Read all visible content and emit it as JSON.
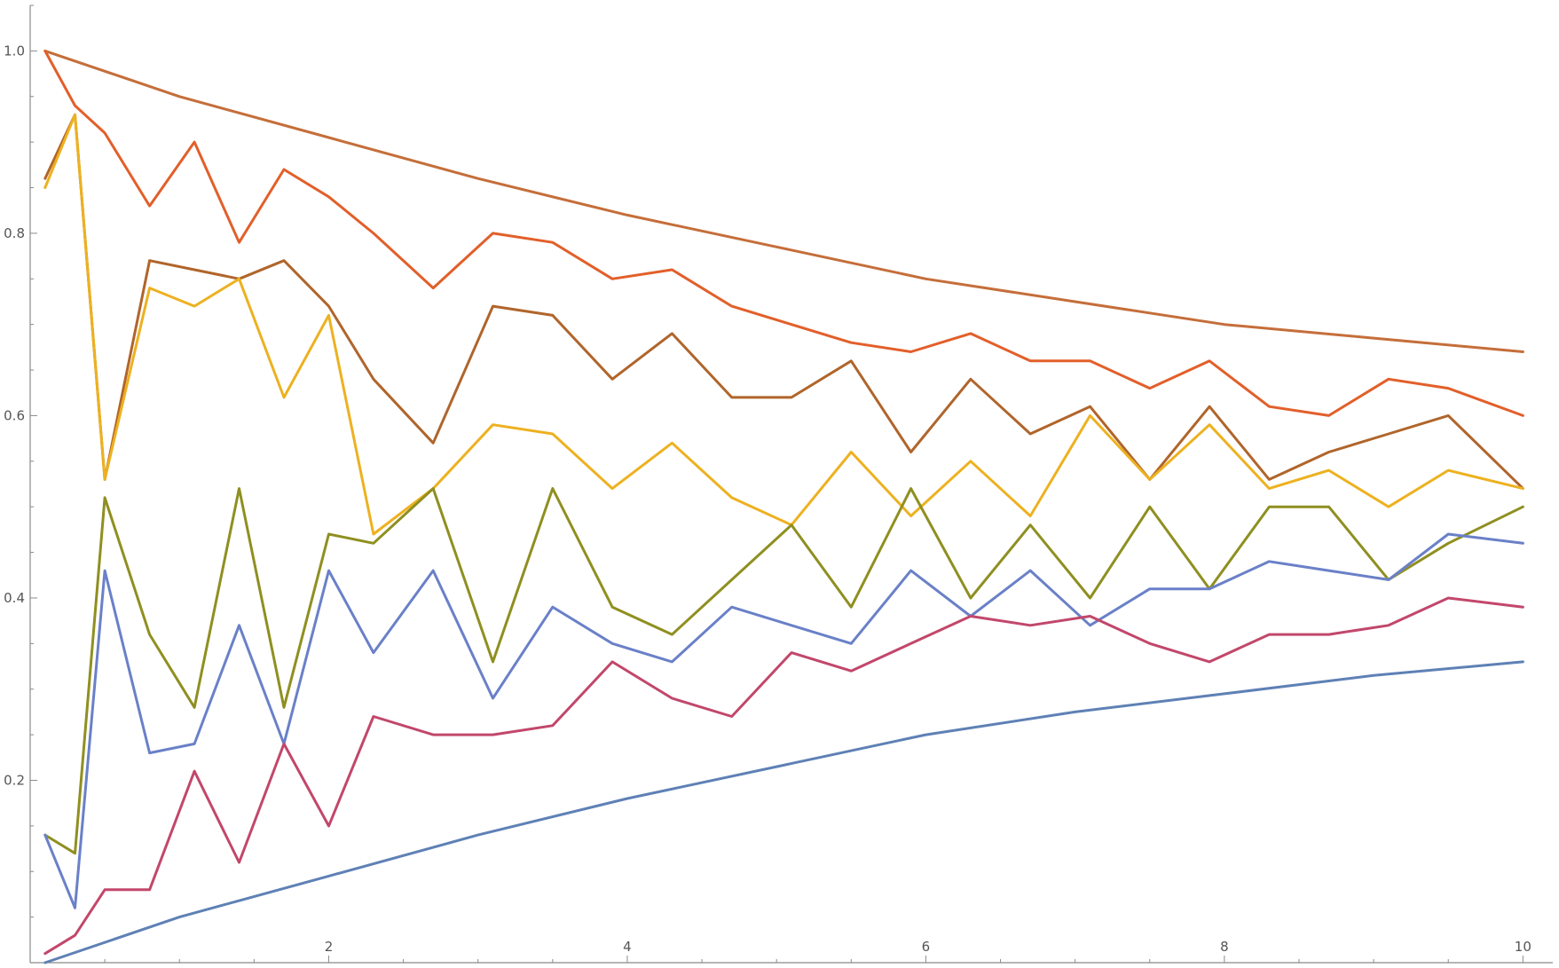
{
  "chart_data": {
    "type": "line",
    "title": "",
    "xlabel": "",
    "ylabel": "",
    "xlim": [
      0,
      10.2
    ],
    "ylim": [
      0,
      1.05
    ],
    "x_ticks_major": [
      2,
      4,
      6,
      8,
      10
    ],
    "x_tick_labels": [
      "2",
      "4",
      "6",
      "8",
      "10"
    ],
    "y_ticks_major": [
      0.2,
      0.4,
      0.6,
      0.8,
      1.0
    ],
    "y_tick_labels": [
      "0.2",
      "0.4",
      "0.6",
      "0.8",
      "1.0"
    ],
    "grid": false,
    "legend": "none",
    "series": [
      {
        "color": "#5E81B5",
        "x": [
          0.1,
          1,
          2,
          3,
          4,
          5,
          6,
          7,
          8,
          9,
          10
        ],
        "y": [
          0.0,
          0.05,
          0.095,
          0.14,
          0.18,
          0.215,
          0.25,
          0.275,
          0.295,
          0.315,
          0.33
        ]
      },
      {
        "color": "#C56E3A",
        "x": [
          0.1,
          1,
          2,
          3,
          4,
          5,
          6,
          7,
          8,
          9,
          10
        ],
        "y": [
          1.0,
          0.95,
          0.905,
          0.86,
          0.82,
          0.785,
          0.75,
          0.725,
          0.7,
          0.685,
          0.67
        ]
      },
      {
        "color": "#E25F2A",
        "x": [
          0.1,
          0.3,
          0.5,
          0.8,
          1.1,
          1.4,
          1.7,
          2.0,
          2.3,
          2.7,
          3.1,
          3.5,
          3.9,
          4.3,
          4.7,
          5.1,
          5.5,
          5.9,
          6.3,
          6.7,
          7.1,
          7.5,
          7.9,
          8.3,
          8.7,
          9.1,
          9.5,
          10.0
        ],
        "y": [
          1.0,
          0.94,
          0.91,
          0.83,
          0.9,
          0.79,
          0.87,
          0.84,
          0.8,
          0.74,
          0.8,
          0.79,
          0.75,
          0.76,
          0.72,
          0.7,
          0.68,
          0.67,
          0.69,
          0.66,
          0.66,
          0.63,
          0.66,
          0.61,
          0.6,
          0.64,
          0.63,
          0.6
        ]
      },
      {
        "color": "#B0652B",
        "x": [
          0.1,
          0.3,
          0.5,
          0.8,
          1.1,
          1.4,
          1.7,
          2.0,
          2.3,
          2.7,
          3.1,
          3.5,
          3.9,
          4.3,
          4.7,
          5.1,
          5.5,
          5.9,
          6.3,
          6.7,
          7.1,
          7.5,
          7.9,
          8.3,
          8.7,
          9.1,
          9.5,
          10.0
        ],
        "y": [
          0.86,
          0.93,
          0.53,
          0.77,
          0.76,
          0.75,
          0.77,
          0.72,
          0.64,
          0.57,
          0.72,
          0.71,
          0.64,
          0.69,
          0.62,
          0.62,
          0.66,
          0.56,
          0.64,
          0.58,
          0.61,
          0.53,
          0.61,
          0.53,
          0.56,
          0.58,
          0.6,
          0.52
        ]
      },
      {
        "color": "#EDB120",
        "x": [
          0.1,
          0.3,
          0.5,
          0.8,
          1.1,
          1.4,
          1.7,
          2.0,
          2.3,
          2.7,
          3.1,
          3.5,
          3.9,
          4.3,
          4.7,
          5.1,
          5.5,
          5.9,
          6.3,
          6.7,
          7.1,
          7.5,
          7.9,
          8.3,
          8.7,
          9.1,
          9.5,
          10.0
        ],
        "y": [
          0.85,
          0.93,
          0.53,
          0.74,
          0.72,
          0.75,
          0.62,
          0.71,
          0.47,
          0.52,
          0.59,
          0.58,
          0.52,
          0.57,
          0.51,
          0.48,
          0.56,
          0.49,
          0.55,
          0.49,
          0.6,
          0.53,
          0.59,
          0.52,
          0.54,
          0.5,
          0.54,
          0.52
        ]
      },
      {
        "color": "#8F8F21",
        "x": [
          0.1,
          0.3,
          0.5,
          0.8,
          1.1,
          1.4,
          1.7,
          2.0,
          2.3,
          2.7,
          3.1,
          3.5,
          3.9,
          4.3,
          4.7,
          5.1,
          5.5,
          5.9,
          6.3,
          6.7,
          7.1,
          7.5,
          7.9,
          8.3,
          8.7,
          9.1,
          9.5,
          10.0
        ],
        "y": [
          0.14,
          0.12,
          0.51,
          0.36,
          0.28,
          0.52,
          0.28,
          0.47,
          0.46,
          0.52,
          0.33,
          0.52,
          0.39,
          0.36,
          0.42,
          0.48,
          0.39,
          0.52,
          0.4,
          0.48,
          0.4,
          0.5,
          0.41,
          0.5,
          0.5,
          0.42,
          0.46,
          0.5
        ]
      },
      {
        "color": "#6A80C8",
        "x": [
          0.1,
          0.3,
          0.5,
          0.8,
          1.1,
          1.4,
          1.7,
          2.0,
          2.3,
          2.7,
          3.1,
          3.5,
          3.9,
          4.3,
          4.7,
          5.1,
          5.5,
          5.9,
          6.3,
          6.7,
          7.1,
          7.5,
          7.9,
          8.3,
          8.7,
          9.1,
          9.5,
          10.0
        ],
        "y": [
          0.14,
          0.06,
          0.43,
          0.23,
          0.24,
          0.37,
          0.24,
          0.43,
          0.34,
          0.43,
          0.29,
          0.39,
          0.35,
          0.33,
          0.39,
          0.37,
          0.35,
          0.43,
          0.38,
          0.43,
          0.37,
          0.41,
          0.41,
          0.44,
          0.43,
          0.42,
          0.47,
          0.46
        ]
      },
      {
        "color": "#C2476B",
        "x": [
          0.1,
          0.3,
          0.5,
          0.8,
          1.1,
          1.4,
          1.7,
          2.0,
          2.3,
          2.7,
          3.1,
          3.5,
          3.9,
          4.3,
          4.7,
          5.1,
          5.5,
          5.9,
          6.3,
          6.7,
          7.1,
          7.5,
          7.9,
          8.3,
          8.7,
          9.1,
          9.5,
          10.0
        ],
        "y": [
          0.01,
          0.03,
          0.08,
          0.08,
          0.21,
          0.11,
          0.24,
          0.15,
          0.27,
          0.25,
          0.25,
          0.26,
          0.33,
          0.29,
          0.27,
          0.34,
          0.32,
          0.35,
          0.38,
          0.37,
          0.38,
          0.35,
          0.33,
          0.36,
          0.36,
          0.37,
          0.4,
          0.39
        ]
      }
    ]
  }
}
